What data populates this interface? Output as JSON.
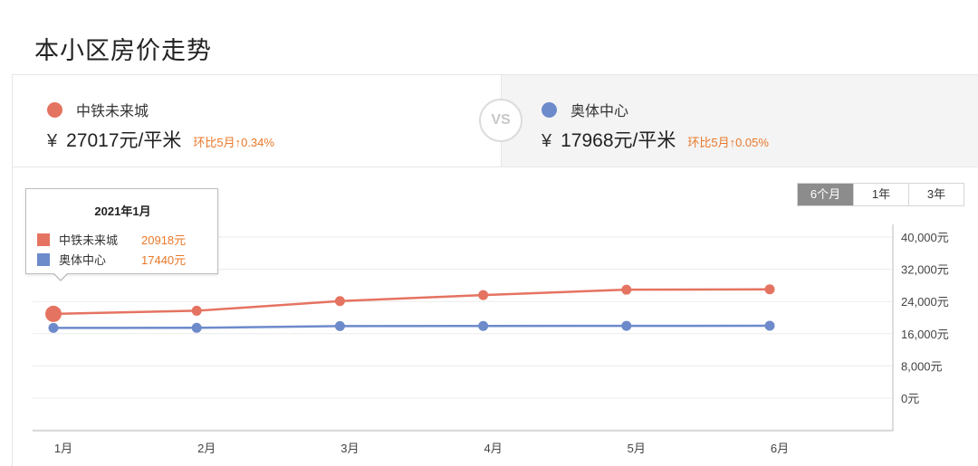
{
  "page": {
    "title": "本小区房价走势"
  },
  "compare": {
    "vs_label": "VS",
    "left": {
      "name": "中铁未来城",
      "currency": "¥",
      "price": "27017元/平米",
      "change": "环比5月↑0.34%",
      "color": "#e57361"
    },
    "right": {
      "name": "奥体中心",
      "currency": "¥",
      "price": "17968元/平米",
      "change": "环比5月↑0.05%",
      "color": "#6d8acb"
    }
  },
  "range_tabs": [
    {
      "label": "6个月",
      "active": true
    },
    {
      "label": "1年",
      "active": false
    },
    {
      "label": "3年",
      "active": false
    }
  ],
  "tooltip": {
    "title": "2021年1月",
    "rows": [
      {
        "name": "中铁未来城",
        "value": "20918元",
        "color": "#e57361"
      },
      {
        "name": "奥体中心",
        "value": "17440元",
        "color": "#6d8acb"
      }
    ]
  },
  "chart_data": {
    "type": "line",
    "categories": [
      "1月",
      "2月",
      "3月",
      "4月",
      "5月",
      "6月"
    ],
    "series": [
      {
        "name": "中铁未来城",
        "color": "#e57361",
        "values": [
          20918,
          21700,
          24100,
          25600,
          26925,
          27017
        ]
      },
      {
        "name": "奥体中心",
        "color": "#6d8acb",
        "values": [
          17440,
          17460,
          17890,
          17930,
          17959,
          17968
        ]
      }
    ],
    "y_ticks": [
      0,
      8000,
      16000,
      24000,
      32000,
      40000
    ],
    "y_tick_labels": [
      "0元",
      "8,000元",
      "16,000元",
      "24,000元",
      "32,000元",
      "40,000元"
    ],
    "ylim": [
      0,
      40000
    ],
    "grid": true,
    "y_axis_position": "right",
    "highlighted_category": "1月"
  }
}
